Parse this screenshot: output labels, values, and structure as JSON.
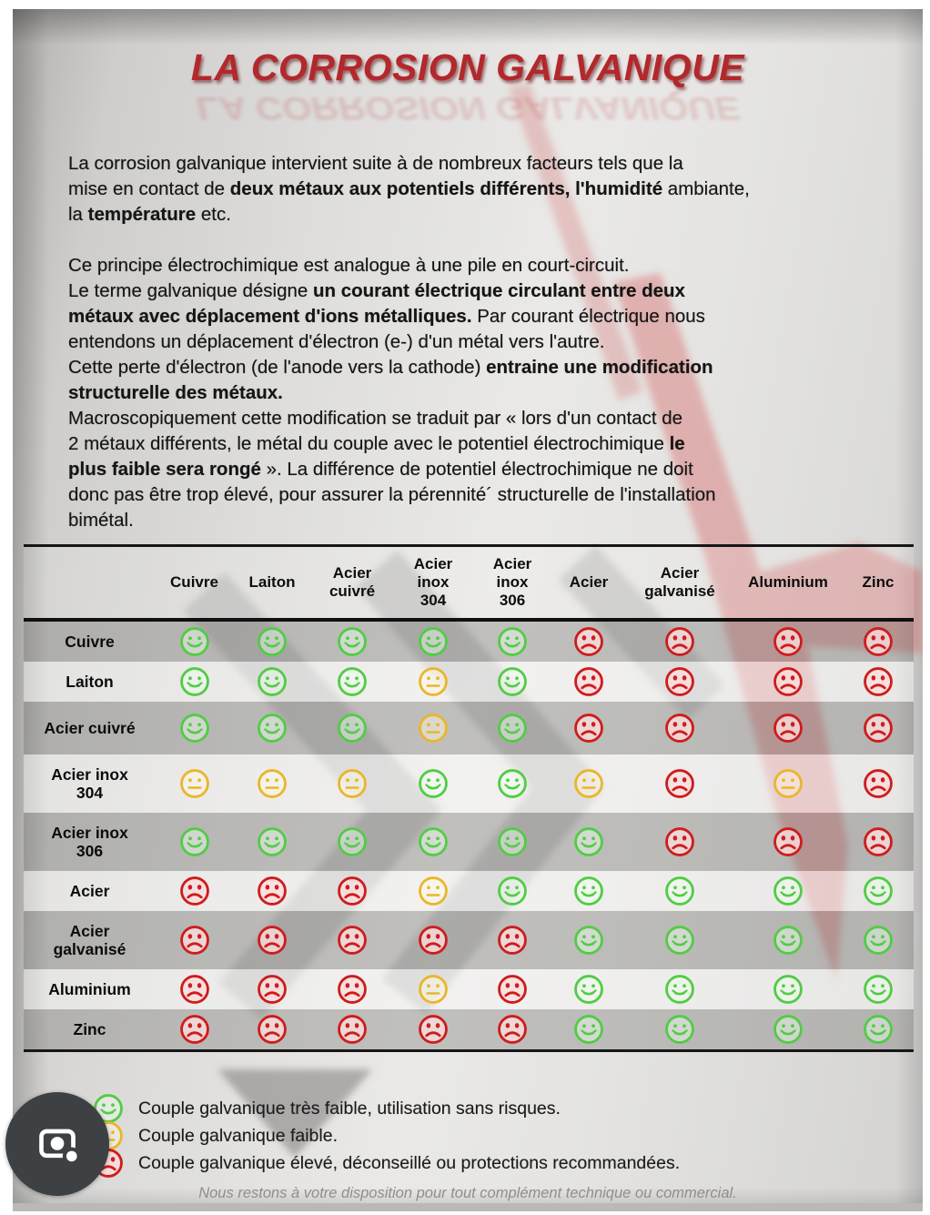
{
  "title": "LA CORROSION GALVANIQUE",
  "paragraphs": [
    [
      [
        {
          "t": "La corrosion galvanique intervient suite à de nombreux facteurs tels que la",
          "b": false
        }
      ],
      [
        {
          "t": "mise en contact de ",
          "b": false
        },
        {
          "t": "deux métaux aux potentiels différents, l'humidité",
          "b": true
        },
        {
          "t": " ambiante,",
          "b": false
        }
      ],
      [
        {
          "t": "la ",
          "b": false
        },
        {
          "t": "température",
          "b": true
        },
        {
          "t": " etc.",
          "b": false
        }
      ]
    ],
    [
      [
        {
          "t": "Ce principe électrochimique est analogue à une pile en court-circuit.",
          "b": false
        }
      ],
      [
        {
          "t": "Le terme galvanique désigne ",
          "b": false
        },
        {
          "t": "un courant électrique circulant entre deux",
          "b": true
        }
      ],
      [
        {
          "t": "métaux avec déplacement d'ions métalliques.",
          "b": true
        },
        {
          "t": " Par courant électrique nous",
          "b": false
        }
      ],
      [
        {
          "t": "entendons un déplacement d'électron (e-) d'un métal vers l'autre.",
          "b": false
        }
      ],
      [
        {
          "t": "Cette perte d'électron (de l'anode vers la cathode) ",
          "b": false
        },
        {
          "t": "entraine une modification",
          "b": true
        }
      ],
      [
        {
          "t": "structurelle des métaux.",
          "b": true
        }
      ],
      [
        {
          "t": "Macroscopiquement cette modification se traduit par « lors d'un contact de",
          "b": false
        }
      ],
      [
        {
          "t": "2 métaux différents, le métal du couple avec le potentiel électrochimique ",
          "b": false
        },
        {
          "t": "le",
          "b": true
        }
      ],
      [
        {
          "t": "plus faible sera rongé",
          "b": true
        },
        {
          "t": " ». La différence de potentiel électrochimique ne doit",
          "b": false
        }
      ],
      [
        {
          "t": "donc pas être trop élevé, pour assurer la pérennité´ structurelle de l'installation",
          "b": false
        }
      ],
      [
        {
          "t": "bimétal.",
          "b": false
        }
      ]
    ]
  ],
  "table": {
    "columns": [
      "Cuivre",
      "Laiton",
      "Acier\ncuivré",
      "Acier\ninox\n304",
      "Acier\ninox\n306",
      "Acier",
      "Acier\ngalvanisé",
      "Aluminium",
      "Zinc"
    ],
    "rows": [
      {
        "label": "Cuivre",
        "size": "s",
        "cells": [
          "g",
          "g",
          "g",
          "g",
          "g",
          "r",
          "r",
          "r",
          "r"
        ]
      },
      {
        "label": "Laiton",
        "size": "s",
        "cells": [
          "g",
          "g",
          "g",
          "y",
          "g",
          "r",
          "r",
          "r",
          "r"
        ]
      },
      {
        "label": "Acier cuivré",
        "size": "m",
        "cells": [
          "g",
          "g",
          "g",
          "y",
          "g",
          "r",
          "r",
          "r",
          "r"
        ]
      },
      {
        "label": "Acier inox\n304",
        "size": "l",
        "cells": [
          "y",
          "y",
          "y",
          "g",
          "g",
          "y",
          "r",
          "y",
          "r"
        ]
      },
      {
        "label": "Acier inox\n306",
        "size": "l",
        "cells": [
          "g",
          "g",
          "g",
          "g",
          "g",
          "g",
          "r",
          "r",
          "r"
        ]
      },
      {
        "label": "Acier",
        "size": "s",
        "cells": [
          "r",
          "r",
          "r",
          "y",
          "g",
          "g",
          "g",
          "g",
          "g"
        ]
      },
      {
        "label": "Acier\ngalvanisé",
        "size": "l",
        "cells": [
          "r",
          "r",
          "r",
          "r",
          "r",
          "g",
          "g",
          "g",
          "g"
        ]
      },
      {
        "label": "Aluminium",
        "size": "s",
        "cells": [
          "r",
          "r",
          "r",
          "y",
          "r",
          "g",
          "g",
          "g",
          "g"
        ]
      },
      {
        "label": "Zinc",
        "size": "s",
        "cells": [
          "r",
          "r",
          "r",
          "r",
          "r",
          "g",
          "g",
          "g",
          "g"
        ]
      }
    ]
  },
  "smiley_meanings": {
    "g": "happy-green",
    "y": "neutral-yellow",
    "r": "sad-red"
  },
  "legend": [
    {
      "icon": "g",
      "text": "Couple galvanique très faible, utilisation sans risques."
    },
    {
      "icon": "y",
      "text": "Couple galvanique faible."
    },
    {
      "icon": "r",
      "text": "Couple galvanique élevé, déconseillé ou protections recommandées."
    }
  ],
  "footer": "Nous restons à votre disposition pour tout complément technique ou commercial.",
  "colors": {
    "title_red": "#b2282c",
    "smiley_green": "#52cc45",
    "smiley_yellow": "#e9b62c",
    "smiley_red": "#cd1d1d",
    "lens_circle": "#3e4144"
  }
}
